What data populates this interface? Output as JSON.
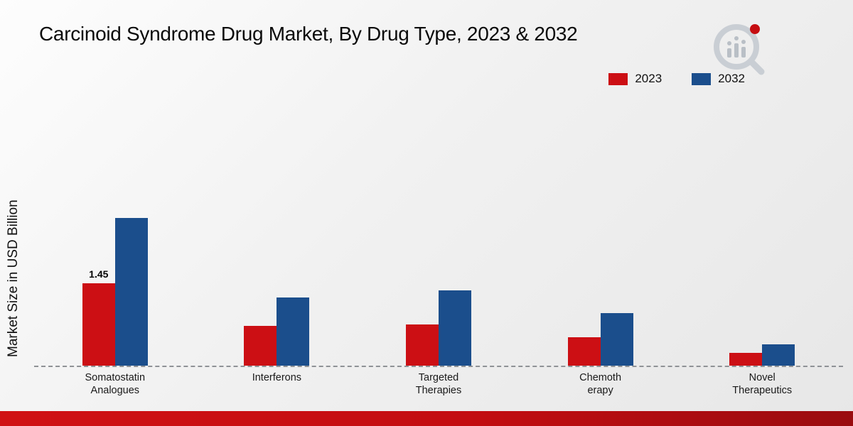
{
  "title": "Carcinoid Syndrome Drug Market, By Drug Type, 2023 & 2032",
  "ylabel": "Market Size in USD Billion",
  "legend": [
    {
      "label": "2023",
      "color": "#cc0f14"
    },
    {
      "label": "2032",
      "color": "#1b4e8c"
    }
  ],
  "chart_data": {
    "type": "bar",
    "title": "Carcinoid Syndrome Drug Market, By Drug Type, 2023 & 2032",
    "xlabel": "",
    "ylabel": "Market Size in USD Billion",
    "ylim": [
      0,
      3
    ],
    "grid": false,
    "legend_position": "top-right",
    "baseline_style": "dashed",
    "categories": [
      "Somatostatin Analogues",
      "Interferons",
      "Targeted Therapies",
      "Chemotherapy",
      "Novel Therapeutics"
    ],
    "category_lines": [
      [
        "Somatostatin",
        "Analogues"
      ],
      [
        "Interferons"
      ],
      [
        "Targeted",
        "Therapies"
      ],
      [
        "Chemoth",
        "erapy"
      ],
      [
        "Novel",
        "Therapeutics"
      ]
    ],
    "series": [
      {
        "name": "2023",
        "color": "#cc0f14",
        "values": [
          1.45,
          0.7,
          0.72,
          0.5,
          0.22
        ]
      },
      {
        "name": "2032",
        "color": "#1b4e8c",
        "values": [
          2.6,
          1.2,
          1.32,
          0.92,
          0.38
        ]
      }
    ],
    "annotations": [
      {
        "category_index": 0,
        "series_index": 0,
        "text": "1.45"
      }
    ]
  }
}
